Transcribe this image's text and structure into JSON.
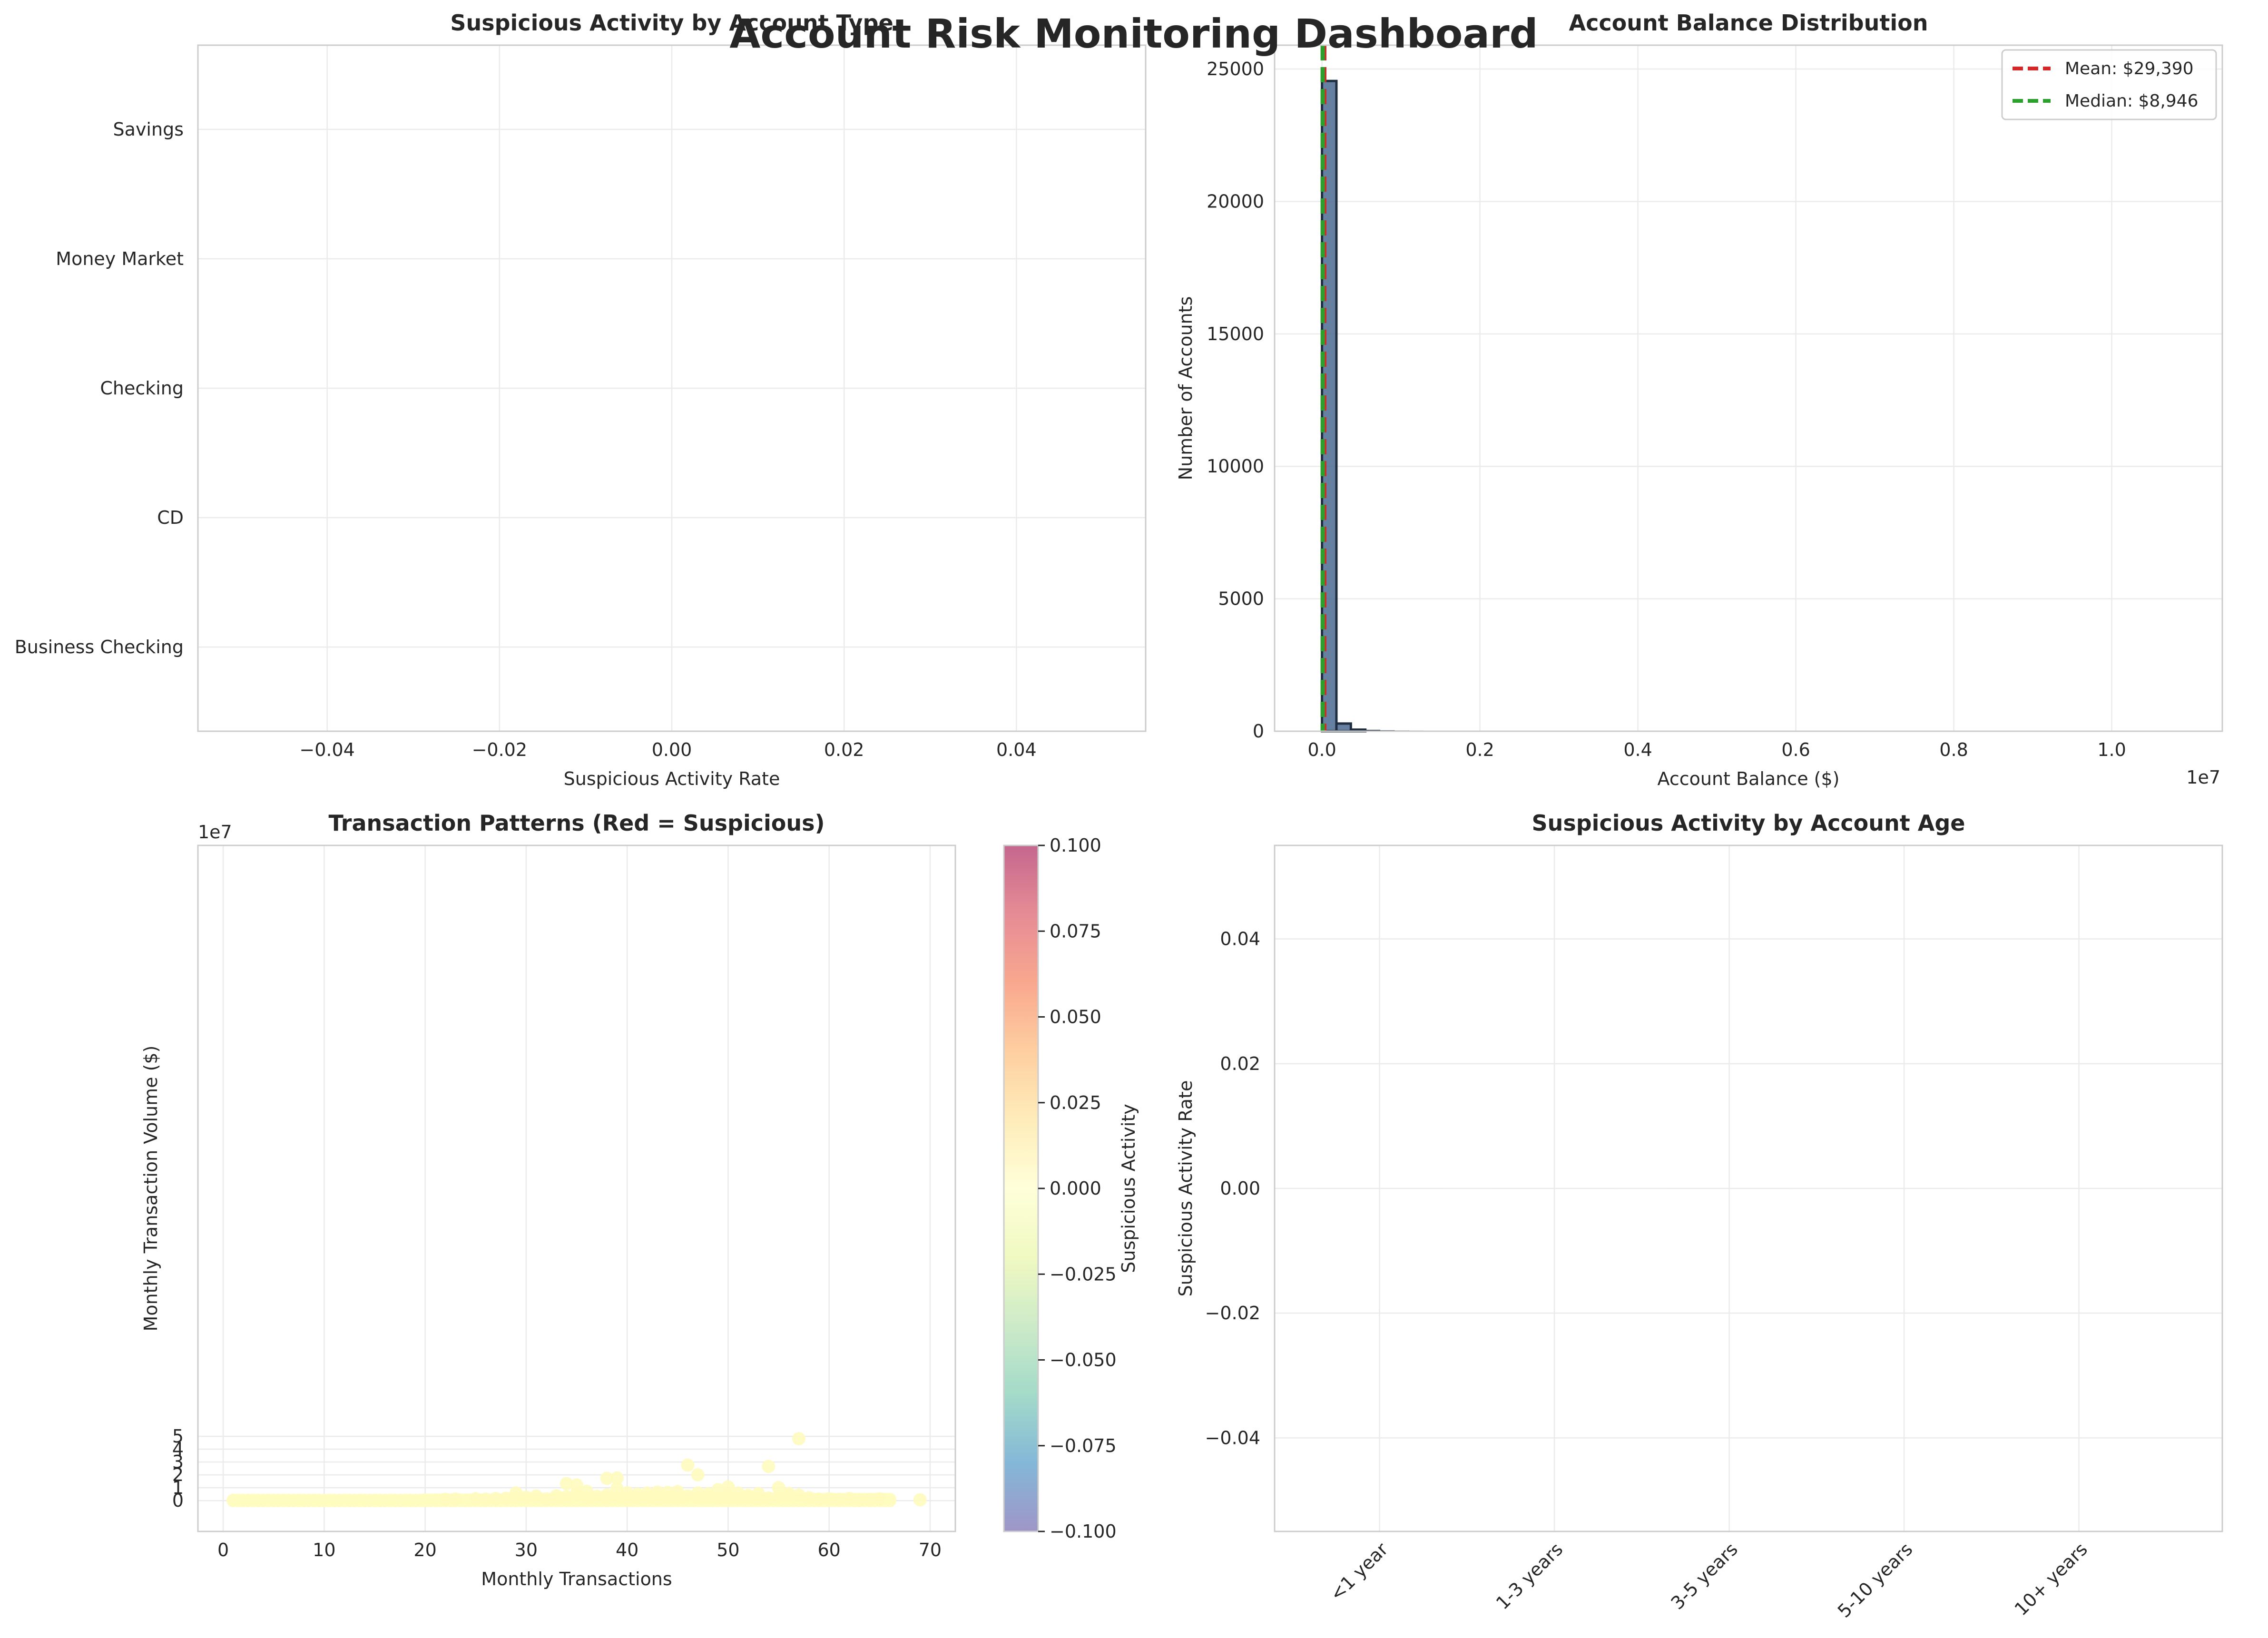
{
  "title": "Account Risk Monitoring Dashboard",
  "colors": {
    "bar": "#4a6a8f",
    "bar_edge": "#1f2e40",
    "mean_line": "#d62728",
    "median_line": "#2ca02c",
    "scatter_point": "#fffbbf",
    "grid": "#ebebeb",
    "frame": "#cccccc"
  },
  "chart_data": [
    {
      "type": "bar",
      "orientation": "horizontal",
      "title": "Suspicious Activity by Account Type",
      "xlabel": "Suspicious Activity Rate",
      "ylabel": "",
      "categories": [
        "Savings",
        "Money Market",
        "Checking",
        "CD",
        "Business Checking"
      ],
      "values": [
        0,
        0,
        0,
        0,
        0
      ],
      "xlim": [
        -0.055,
        0.055
      ],
      "xticks": [
        -0.04,
        -0.02,
        0.0,
        0.02,
        0.04
      ],
      "xtick_labels": [
        "−0.04",
        "−0.02",
        "0.00",
        "0.02",
        "0.04"
      ],
      "grid": true
    },
    {
      "type": "histogram",
      "title": "Account Balance Distribution",
      "xlabel": "Account Balance ($)",
      "ylabel": "Number of Accounts",
      "x_offset_label": "1e7",
      "xlim": [
        -0.06,
        1.14
      ],
      "ylim": [
        0,
        25900
      ],
      "xticks": [
        0.0,
        0.2,
        0.4,
        0.6,
        0.8,
        1.0
      ],
      "xtick_labels": [
        "0.0",
        "0.2",
        "0.4",
        "0.6",
        "0.8",
        "1.0"
      ],
      "yticks": [
        0,
        5000,
        10000,
        15000,
        20000,
        25000
      ],
      "ytick_labels": [
        "0",
        "5000",
        "10000",
        "15000",
        "20000",
        "25000"
      ],
      "bin_start": 0.0,
      "bin_width": 0.0183,
      "counts": [
        24550,
        290,
        60,
        35,
        20,
        12,
        10,
        8,
        6,
        5,
        4,
        4,
        3,
        3,
        2,
        2,
        2,
        2,
        1,
        1,
        1,
        1,
        1,
        1,
        1,
        1,
        1,
        1,
        1,
        1,
        1,
        1,
        1,
        1,
        1,
        1,
        1,
        1,
        1,
        1,
        1,
        1,
        1,
        1,
        1,
        1,
        1,
        1,
        1,
        1,
        1,
        1,
        1,
        1,
        1,
        1,
        1,
        1,
        1,
        1
      ],
      "mean_value": 0.002939,
      "median_value": 0.0008946,
      "legend": [
        "Mean: $29,390",
        "Median: $8,946"
      ],
      "legend_position": "upper right",
      "grid": true
    },
    {
      "type": "scatter",
      "title": "Transaction Patterns (Red = Suspicious)",
      "xlabel": "Monthly Transactions",
      "ylabel": "Monthly Transaction Volume ($)",
      "y_offset_label": "1e7",
      "xlim": [
        -2.5,
        72.5
      ],
      "ylim": [
        -2.4,
        51
      ],
      "xticks": [
        0,
        10,
        20,
        30,
        40,
        50,
        60,
        70
      ],
      "xtick_labels": [
        "0",
        "10",
        "20",
        "30",
        "40",
        "50",
        "60",
        "70"
      ],
      "yticks": [
        0,
        1,
        2,
        3,
        4,
        5
      ],
      "ytick_labels": [
        "0",
        "1",
        "2",
        "3",
        "4",
        "5"
      ],
      "colorbar": {
        "label": "Suspicious Activity",
        "min": -0.1,
        "max": 0.1,
        "ticks": [
          0.1,
          0.075,
          0.05,
          0.025,
          0.0,
          -0.025,
          -0.05,
          -0.075,
          -0.1
        ],
        "tick_labels": [
          "0.100",
          "0.075",
          "0.050",
          "0.025",
          "0.000",
          "−0.025",
          "−0.050",
          "−0.075",
          "−0.100"
        ]
      },
      "points": [
        [
          57,
          4.82
        ],
        [
          46,
          2.76
        ],
        [
          54,
          2.66
        ],
        [
          47,
          2.01
        ],
        [
          39,
          1.76
        ],
        [
          38,
          1.73
        ],
        [
          34,
          1.32
        ],
        [
          35,
          1.21
        ],
        [
          50,
          1.06
        ],
        [
          55,
          1.01
        ],
        [
          39,
          0.93
        ],
        [
          49,
          0.85
        ],
        [
          36,
          0.72
        ],
        [
          45,
          0.7
        ],
        [
          43,
          0.66
        ],
        [
          44,
          0.63
        ],
        [
          47,
          0.59
        ],
        [
          29,
          0.59
        ],
        [
          51,
          0.58
        ],
        [
          35,
          0.56
        ],
        [
          42,
          0.58
        ],
        [
          56,
          0.55
        ],
        [
          40,
          0.6
        ],
        [
          53,
          0.54
        ],
        [
          48,
          0.52
        ],
        [
          41,
          0.5
        ],
        [
          35,
          0.48
        ],
        [
          45,
          0.46
        ],
        [
          38,
          0.44
        ],
        [
          50,
          0.42
        ],
        [
          52,
          0.4
        ],
        [
          43,
          0.38
        ],
        [
          33,
          0.37
        ],
        [
          46,
          0.36
        ],
        [
          39,
          0.35
        ],
        [
          57,
          0.42
        ],
        [
          56,
          0.41
        ],
        [
          55,
          0.33
        ],
        [
          37,
          0.33
        ],
        [
          31,
          0.35
        ],
        [
          34,
          0.3
        ],
        [
          48,
          0.3
        ],
        [
          42,
          0.3
        ],
        [
          44,
          0.28
        ],
        [
          30,
          0.26
        ],
        [
          52,
          0.27
        ],
        [
          29,
          0.24
        ],
        [
          50,
          0.25
        ],
        [
          40,
          0.24
        ],
        [
          36,
          0.22
        ],
        [
          58,
          0.22
        ],
        [
          47,
          0.22
        ],
        [
          41,
          0.2
        ],
        [
          62,
          0.16
        ],
        [
          65,
          0.13
        ],
        [
          69,
          0.06
        ],
        [
          28,
          0.18
        ],
        [
          27,
          0.16
        ],
        [
          25,
          0.14
        ],
        [
          23,
          0.12
        ],
        [
          22,
          0.1
        ],
        [
          60,
          0.14
        ],
        [
          61,
          0.1
        ],
        [
          64,
          0.08
        ],
        [
          63,
          0.06
        ],
        [
          59,
          0.12
        ],
        [
          54,
          0.2
        ],
        [
          53,
          0.18
        ],
        [
          51,
          0.16
        ],
        [
          49,
          0.19
        ],
        [
          45,
          0.18
        ],
        [
          43,
          0.17
        ],
        [
          38,
          0.19
        ],
        [
          33,
          0.15
        ],
        [
          32,
          0.13
        ],
        [
          26,
          0.11
        ]
      ],
      "grid": true
    },
    {
      "type": "bar",
      "title": "Suspicious Activity by Account Age",
      "xlabel": "",
      "ylabel": "Suspicious Activity Rate",
      "categories": [
        "<1 year",
        "1-3 years",
        "3-5 years",
        "5-10 years",
        "10+ years"
      ],
      "values": [
        0,
        0,
        0,
        0,
        0
      ],
      "ylim": [
        -0.055,
        0.055
      ],
      "yticks": [
        0.04,
        0.02,
        0.0,
        -0.02,
        -0.04
      ],
      "ytick_labels": [
        "0.04",
        "0.02",
        "0.00",
        "−0.02",
        "−0.04"
      ],
      "grid": true
    }
  ]
}
